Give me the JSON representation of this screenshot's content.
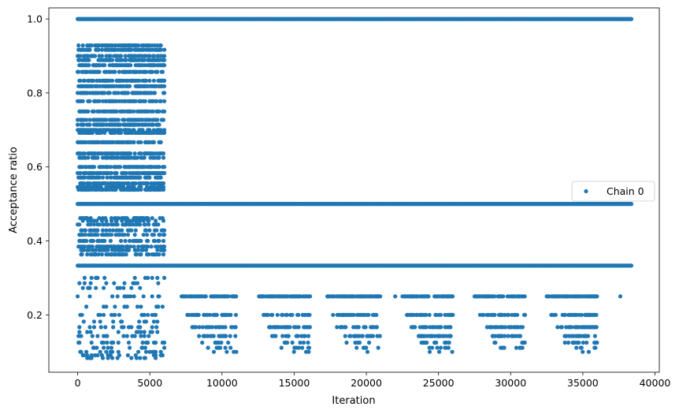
{
  "chart_data": {
    "type": "scatter",
    "xlabel": "Iteration",
    "ylabel": "Acceptance ratio",
    "xlim": [
      -2000,
      40300
    ],
    "ylim": [
      0.045,
      1.03
    ],
    "xticks": [
      0,
      5000,
      10000,
      15000,
      20000,
      25000,
      30000,
      35000,
      40000
    ],
    "xtick_labels": [
      "0",
      "5000",
      "10000",
      "15000",
      "20000",
      "25000",
      "30000",
      "35000",
      "40000"
    ],
    "yticks": [
      0.2,
      0.4,
      0.6,
      0.8,
      1.0
    ],
    "ytick_labels": [
      "0.2",
      "0.4",
      "0.6",
      "0.8",
      "1.0"
    ],
    "grid": false,
    "legend_position": "center-right",
    "marker_color": "#1f77b4",
    "series": [
      {
        "name": "Chain 0",
        "description_levels": {
          "constant_levels": [
            1.0,
            0.5,
            0.3333
          ],
          "intermittent_levels": [
            0.25,
            0.2,
            0.1667,
            0.1429,
            0.125,
            0.1111,
            0.1
          ],
          "early_phase_range_x": [
            0,
            6000
          ],
          "early_phase_levels": [
            0.9286,
            0.9167,
            0.9,
            0.8889,
            0.875,
            0.8571,
            0.8333,
            0.8182,
            0.8,
            0.7778,
            0.75,
            0.7273,
            0.7143,
            0.7,
            0.6923,
            0.6667,
            0.6364,
            0.625,
            0.6,
            0.5833,
            0.5714,
            0.5556,
            0.5455,
            0.5385,
            0.4615,
            0.4545,
            0.4444,
            0.4286,
            0.4167,
            0.4,
            0.3846,
            0.375,
            0.3636,
            0.3,
            0.2857,
            0.2727,
            0.25,
            0.2222,
            0.2,
            0.1818,
            0.1667,
            0.1538,
            0.1429,
            0.125,
            0.1111,
            0.1,
            0.0909,
            0.0833
          ],
          "lower_clusters_x": [
            [
              7200,
              11000
            ],
            [
              12500,
              16100
            ],
            [
              17300,
              21000
            ],
            [
              22500,
              26000
            ],
            [
              27500,
              31000
            ],
            [
              32500,
              36000
            ]
          ],
          "x_max": 38400
        }
      }
    ]
  }
}
